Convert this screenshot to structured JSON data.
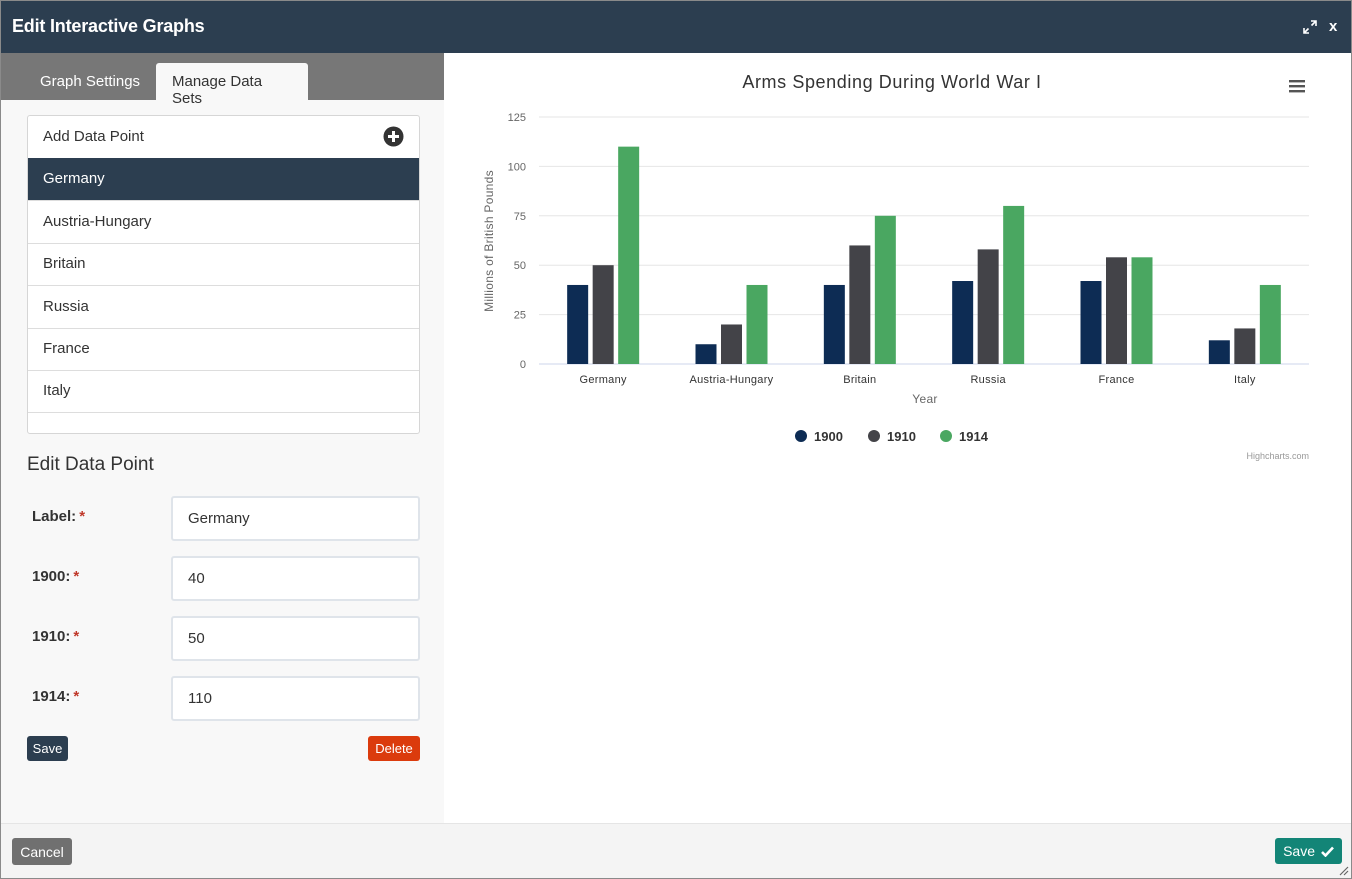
{
  "window": {
    "title": "Edit Interactive Graphs",
    "close_label": "x"
  },
  "tabs": [
    {
      "label": "Graph Settings"
    },
    {
      "label": "Manage Data Sets"
    }
  ],
  "data_list": {
    "add_label": "Add Data Point",
    "items": [
      {
        "label": "Germany"
      },
      {
        "label": "Austria-Hungary"
      },
      {
        "label": "Britain"
      },
      {
        "label": "Russia"
      },
      {
        "label": "France"
      },
      {
        "label": "Italy"
      }
    ]
  },
  "edit_form": {
    "heading": "Edit Data Point",
    "fields": [
      {
        "label": "Label:",
        "value": "Germany"
      },
      {
        "label": "1900:",
        "value": "40"
      },
      {
        "label": "1910:",
        "value": "50"
      },
      {
        "label": "1914:",
        "value": "110"
      }
    ],
    "save_label": "Save",
    "delete_label": "Delete"
  },
  "footer": {
    "cancel_label": "Cancel",
    "save_label": "Save"
  },
  "colors": {
    "header": "#2c3e50",
    "s1900": "#0d2c54",
    "s1910": "#434348",
    "s1914": "#4aa761",
    "delete": "#db3b0d",
    "save_main": "#138577"
  },
  "chart_data": {
    "type": "bar",
    "title": "Arms Spending During World War I",
    "xlabel": "Year",
    "ylabel": "Millions of British Pounds",
    "ylim": [
      0,
      125
    ],
    "yticks": [
      0,
      25,
      50,
      75,
      100,
      125
    ],
    "categories": [
      "Germany",
      "Austria-Hungary",
      "Britain",
      "Russia",
      "France",
      "Italy"
    ],
    "series": [
      {
        "name": "1900",
        "values": [
          40,
          10,
          40,
          42,
          42,
          12
        ]
      },
      {
        "name": "1910",
        "values": [
          50,
          20,
          60,
          58,
          54,
          18
        ]
      },
      {
        "name": "1914",
        "values": [
          110,
          40,
          75,
          80,
          54,
          40
        ]
      }
    ],
    "legend_position": "bottom-center",
    "credits": "Highcharts.com"
  }
}
